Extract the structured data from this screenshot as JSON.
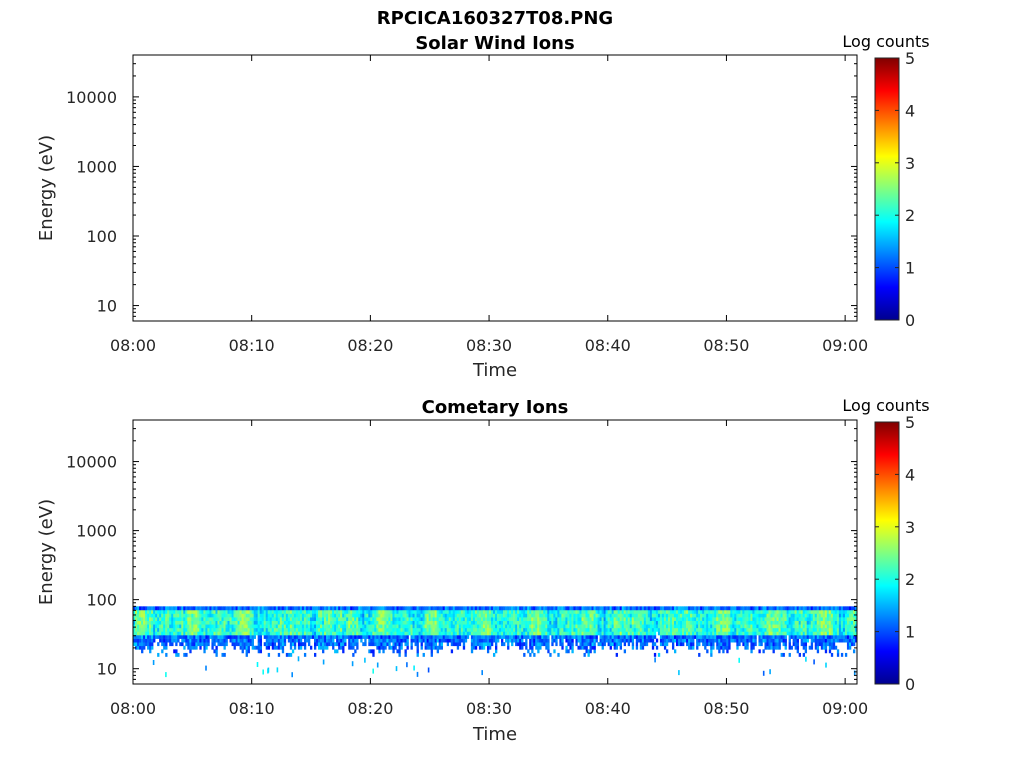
{
  "figure": {
    "title": "RPCICA160327T08.PNG"
  },
  "colorbar": {
    "label": "Log counts",
    "ticks": [
      "0",
      "1",
      "2",
      "3",
      "4",
      "5"
    ],
    "colormap": [
      "#00008f",
      "#0000ff",
      "#0080ff",
      "#00ffff",
      "#80ff80",
      "#ffff00",
      "#ff8000",
      "#ff0000",
      "#800000"
    ]
  },
  "chart_data": [
    {
      "type": "heatmap",
      "title": "Solar Wind Ions",
      "xlabel": "Time",
      "ylabel": "Energy (eV)",
      "x_ticks": [
        "08:00",
        "08:10",
        "08:20",
        "08:30",
        "08:40",
        "08:50",
        "09:00"
      ],
      "y_ticks": [
        "10",
        "100",
        "1000",
        "10000"
      ],
      "y_scale": "log",
      "xlim": [
        "08:00",
        "09:01"
      ],
      "ylim": [
        6,
        40000
      ],
      "colorbar_range": [
        0,
        5
      ],
      "data_bands": []
    },
    {
      "type": "heatmap",
      "title": "Cometary Ions",
      "xlabel": "Time",
      "ylabel": "Energy (eV)",
      "x_ticks": [
        "08:00",
        "08:10",
        "08:20",
        "08:30",
        "08:40",
        "08:50",
        "09:00"
      ],
      "y_ticks": [
        "10",
        "100",
        "1000",
        "10000"
      ],
      "y_scale": "log",
      "xlim": [
        "08:00",
        "09:01"
      ],
      "ylim": [
        6,
        40000
      ],
      "colorbar_range": [
        0,
        5
      ],
      "data_bands": [
        {
          "time_range": [
            "08:00",
            "09:01"
          ],
          "energy_range_eV": [
            15,
            80
          ],
          "peak_energy_range_eV": [
            30,
            70
          ],
          "typical_log_counts": [
            1,
            2.5
          ],
          "max_log_counts": 2.8
        }
      ]
    }
  ]
}
